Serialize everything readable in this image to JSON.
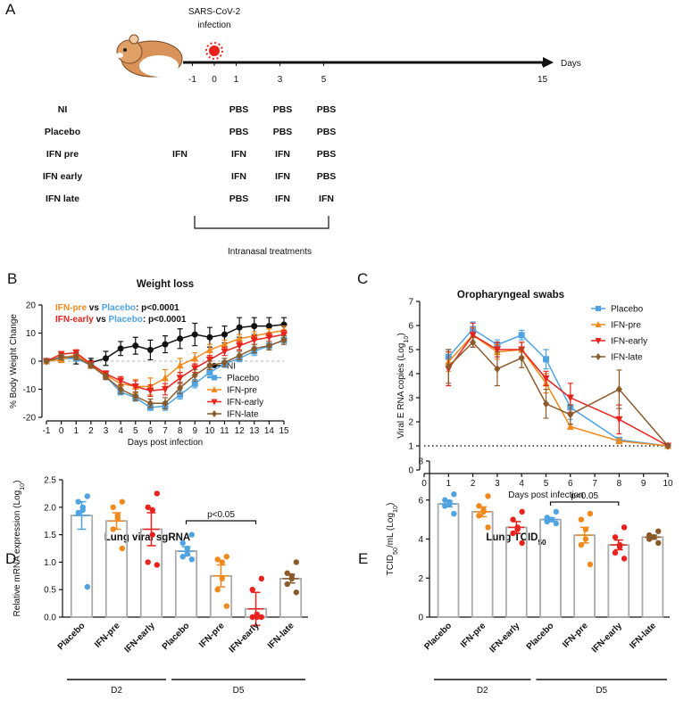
{
  "diagram": {
    "panel": "A",
    "event": [
      "SARS-CoV-2",
      "infection"
    ],
    "axis_label": "Days",
    "days": [
      -1,
      0,
      1,
      3,
      5,
      15
    ],
    "rows": [
      {
        "label": "NI",
        "color": "#111111",
        "cells": [
          null,
          "PBS",
          "PBS",
          "PBS"
        ]
      },
      {
        "label": "Placebo",
        "color": "#4fa3e0",
        "cells": [
          null,
          "PBS",
          "PBS",
          "PBS"
        ]
      },
      {
        "label": "IFN pre",
        "color": "#f08a1c",
        "cells": [
          "IFN",
          "IFN",
          "IFN",
          "PBS"
        ]
      },
      {
        "label": "IFN early",
        "color": "#e8231e",
        "cells": [
          null,
          "IFN",
          "IFN",
          "PBS"
        ]
      },
      {
        "label": "IFN late",
        "color": "#8b5a2b",
        "cells": [
          null,
          "PBS",
          "IFN",
          "IFN"
        ]
      }
    ],
    "bracket_label": "Intranasal treatments"
  },
  "chart_data": [
    {
      "type": "line",
      "panel": "B",
      "title": "Weight loss",
      "xlabel": "Days post infection",
      "ylabel": "% Body Weight Change",
      "xlim": [
        -1,
        15
      ],
      "ylim": [
        -20,
        20
      ],
      "xticks": [
        -1,
        0,
        1,
        2,
        3,
        4,
        5,
        6,
        7,
        8,
        9,
        10,
        11,
        12,
        13,
        14,
        15
      ],
      "yticks": [
        -20,
        -10,
        0,
        10,
        20
      ],
      "reference_line": 0,
      "legend": "lower right",
      "annotations": [
        {
          "parts": [
            {
              "text": "IFN-pre",
              "color": "#f08a1c"
            },
            {
              "text": " vs "
            },
            {
              "text": "Placebo",
              "color": "#4fa3e0"
            },
            {
              "text": ": p<0.0001"
            }
          ]
        },
        {
          "parts": [
            {
              "text": "IFN-early",
              "color": "#e8231e"
            },
            {
              "text": " vs "
            },
            {
              "text": "Placebo",
              "color": "#4fa3e0"
            },
            {
              "text": ": p<0.0001"
            }
          ]
        }
      ],
      "x": [
        -1,
        0,
        1,
        2,
        3,
        4,
        5,
        6,
        7,
        8,
        9,
        10,
        11,
        12,
        13,
        14,
        15
      ],
      "series": [
        {
          "name": "NI",
          "color": "#111111",
          "marker": "circle",
          "values": [
            0,
            1,
            1,
            -0.5,
            1,
            4.5,
            5.5,
            4,
            6,
            8,
            9.5,
            8.5,
            9.5,
            12,
            12.5,
            12.5,
            13
          ],
          "errors": [
            0,
            1,
            2,
            1.5,
            2.5,
            2.5,
            3,
            3.5,
            3,
            3.5,
            4,
            3.5,
            3,
            3.5,
            3,
            3,
            2.5
          ]
        },
        {
          "name": "Placebo",
          "color": "#4fa3e0",
          "marker": "square",
          "values": [
            0,
            1,
            1,
            -1.5,
            -5.5,
            -11,
            -13,
            -16.5,
            -16,
            -12,
            -8,
            -4,
            -1,
            1,
            3.5,
            5.5,
            7.5
          ],
          "errors": [
            0,
            0.8,
            1,
            0.8,
            1,
            1,
            1.2,
            1,
            1.5,
            1.5,
            1.5,
            1.5,
            1.2,
            1.2,
            1.5,
            1.5,
            1.5
          ]
        },
        {
          "name": "IFN-pre",
          "color": "#f08a1c",
          "marker": "triangle-up",
          "values": [
            0,
            0.5,
            2.5,
            -1.5,
            -5,
            -8,
            -9,
            -9,
            -6,
            -1.5,
            1,
            4,
            6,
            8,
            9,
            10,
            11
          ],
          "errors": [
            0,
            1,
            1.5,
            1,
            1.5,
            2,
            2.5,
            3,
            3,
            2.5,
            2,
            2,
            1.5,
            1.5,
            1.5,
            1.5,
            1.5
          ]
        },
        {
          "name": "IFN-early",
          "color": "#e8231e",
          "marker": "triangle-down",
          "values": [
            0,
            2.5,
            3,
            -1,
            -4.5,
            -7,
            -9,
            -10.5,
            -10,
            -6,
            -2.5,
            0.5,
            3.5,
            5.5,
            7.5,
            8.5,
            9.5
          ],
          "errors": [
            0,
            0.8,
            1,
            1,
            1,
            1.5,
            2,
            2,
            2,
            2,
            1.5,
            1.5,
            1.5,
            1.5,
            1.5,
            1.5,
            1.5
          ]
        },
        {
          "name": "IFN-late",
          "color": "#8b5a2b",
          "marker": "diamond",
          "values": [
            0,
            1.5,
            1.5,
            -1.5,
            -5.5,
            -10,
            -12.5,
            -15,
            -15,
            -9.5,
            -5,
            -1.5,
            -0.5,
            2,
            4.5,
            5.5,
            7.5
          ],
          "errors": [
            0,
            1,
            1,
            1,
            1,
            1.5,
            1.5,
            1.5,
            2,
            2,
            2,
            1.5,
            1.5,
            1.5,
            1.5,
            1.5,
            1.5
          ]
        }
      ]
    },
    {
      "type": "line",
      "panel": "C",
      "title": "Oropharyngeal swabs",
      "xlabel": "Days post infection",
      "ylabel": [
        "Viral E RNA copies (Log",
        "10",
        ")"
      ],
      "xlim": [
        0,
        10
      ],
      "ylim": [
        0,
        7
      ],
      "xticks": [
        0,
        1,
        2,
        3,
        4,
        5,
        6,
        7,
        8,
        9,
        10
      ],
      "yticks": [
        0,
        1,
        2,
        3,
        4,
        5,
        6,
        7
      ],
      "reference_line": 1,
      "legend": "upper right",
      "x": [
        1,
        2,
        3,
        4,
        5,
        6,
        8,
        10
      ],
      "series": [
        {
          "name": "Placebo",
          "color": "#4fa3e0",
          "marker": "square",
          "values": [
            4.7,
            5.85,
            5.2,
            5.6,
            4.6,
            2.6,
            1.25,
            1.0
          ],
          "errors": [
            0.3,
            0.3,
            0.2,
            0.2,
            0.4,
            0.5,
            0.1,
            0
          ]
        },
        {
          "name": "IFN-pre",
          "color": "#f08a1c",
          "marker": "triangle-up",
          "values": [
            4.5,
            5.6,
            4.9,
            5.0,
            3.6,
            1.8,
            1.2,
            1.0
          ],
          "errors": [
            0.4,
            0.3,
            0.3,
            0.3,
            0.4,
            0.1,
            0.1,
            0
          ]
        },
        {
          "name": "IFN-early",
          "color": "#e8231e",
          "marker": "triangle-down",
          "values": [
            4.2,
            5.6,
            5.0,
            5.0,
            3.8,
            3.0,
            2.1,
            1.0
          ],
          "errors": [
            0.7,
            0.5,
            0.3,
            0.3,
            0.3,
            0.6,
            0.6,
            0
          ]
        },
        {
          "name": "IFN-late",
          "color": "#8b5a2b",
          "marker": "diamond",
          "values": [
            4.3,
            5.3,
            4.2,
            4.65,
            2.75,
            2.3,
            3.35,
            1.0
          ],
          "errors": [
            0.7,
            0.2,
            0.7,
            0.4,
            0.6,
            0.4,
            0.8,
            0
          ]
        }
      ]
    },
    {
      "type": "bar",
      "panel": "D",
      "title": "Lung viral sgRNA",
      "ylabel": [
        "Relative mRNA expression (Log",
        "10",
        ")"
      ],
      "ylim": [
        0,
        2.5
      ],
      "yticks": [
        {
          "value": 0,
          "label": "0.0"
        },
        0.5,
        {
          "value": 1,
          "label": "1.0"
        },
        1.5,
        {
          "value": 2,
          "label": "2.0"
        },
        2.5
      ],
      "categories": [
        "Placebo",
        "IFN-pre",
        "IFN-early",
        "Placebo",
        "IFN-pre",
        "IFN-early",
        "IFN-late"
      ],
      "colors": [
        "#4fa3e0",
        "#f08a1c",
        "#e8231e",
        "#4fa3e0",
        "#f08a1c",
        "#e8231e",
        "#8b5a2b"
      ],
      "groups": [
        "D2",
        "D5"
      ],
      "annotation": "p<0.05",
      "values": [
        1.85,
        1.75,
        1.6,
        1.2,
        0.75,
        0.15,
        0.7
      ],
      "errors": [
        0.25,
        0.15,
        0.3,
        0.08,
        0.2,
        0.3,
        0.08
      ],
      "points": [
        [
          2.2,
          2.1,
          2.0,
          1.95,
          1.9,
          0.55
        ],
        [
          2.1,
          2.0,
          1.85,
          1.8,
          1.6,
          1.25
        ],
        [
          2.25,
          2.0,
          1.95,
          1.5,
          1.0,
          0.95
        ],
        [
          1.5,
          1.35,
          1.25,
          1.15,
          1.1,
          1.05
        ],
        [
          1.1,
          1.05,
          1.0,
          0.7,
          0.5,
          0.2
        ],
        [
          0.7,
          0.5,
          0.05,
          0.0,
          0.0,
          0.0
        ],
        [
          1.0,
          0.8,
          0.75,
          0.7,
          0.6,
          0.45
        ]
      ]
    },
    {
      "type": "bar",
      "panel": "E",
      "title": [
        "Lung TCID",
        "50"
      ],
      "ylabel": [
        "TCID",
        "50",
        "/mL (Log",
        "10",
        ")"
      ],
      "ylim": [
        0,
        8
      ],
      "yticks": [
        0,
        2,
        4,
        6,
        8
      ],
      "categories": [
        "Placebo",
        "IFN-pre",
        "IFN-early",
        "Placebo",
        "IFN-pre",
        "IFN-early",
        "IFN-late"
      ],
      "colors": [
        "#4fa3e0",
        "#f08a1c",
        "#e8231e",
        "#4fa3e0",
        "#f08a1c",
        "#e8231e",
        "#8b5a2b"
      ],
      "groups": [
        "D2",
        "D5"
      ],
      "annotation": "p<0.05",
      "values": [
        5.8,
        5.4,
        4.6,
        5.0,
        4.2,
        3.7,
        4.1
      ],
      "errors": [
        0.15,
        0.25,
        0.3,
        0.1,
        0.4,
        0.25,
        0.1
      ],
      "points": [
        [
          6.3,
          6.0,
          5.9,
          5.8,
          5.7,
          5.3
        ],
        [
          6.2,
          5.7,
          5.5,
          5.4,
          5.2,
          4.6
        ],
        [
          5.4,
          5.0,
          4.6,
          4.5,
          4.3,
          3.8
        ],
        [
          5.4,
          5.1,
          5.0,
          5.0,
          4.9,
          4.8
        ],
        [
          5.3,
          5.0,
          4.5,
          4.0,
          3.7,
          2.7
        ],
        [
          4.6,
          4.1,
          3.7,
          3.6,
          3.3,
          3.0
        ],
        [
          4.4,
          4.2,
          4.1,
          4.1,
          4.0,
          3.8
        ]
      ]
    }
  ]
}
